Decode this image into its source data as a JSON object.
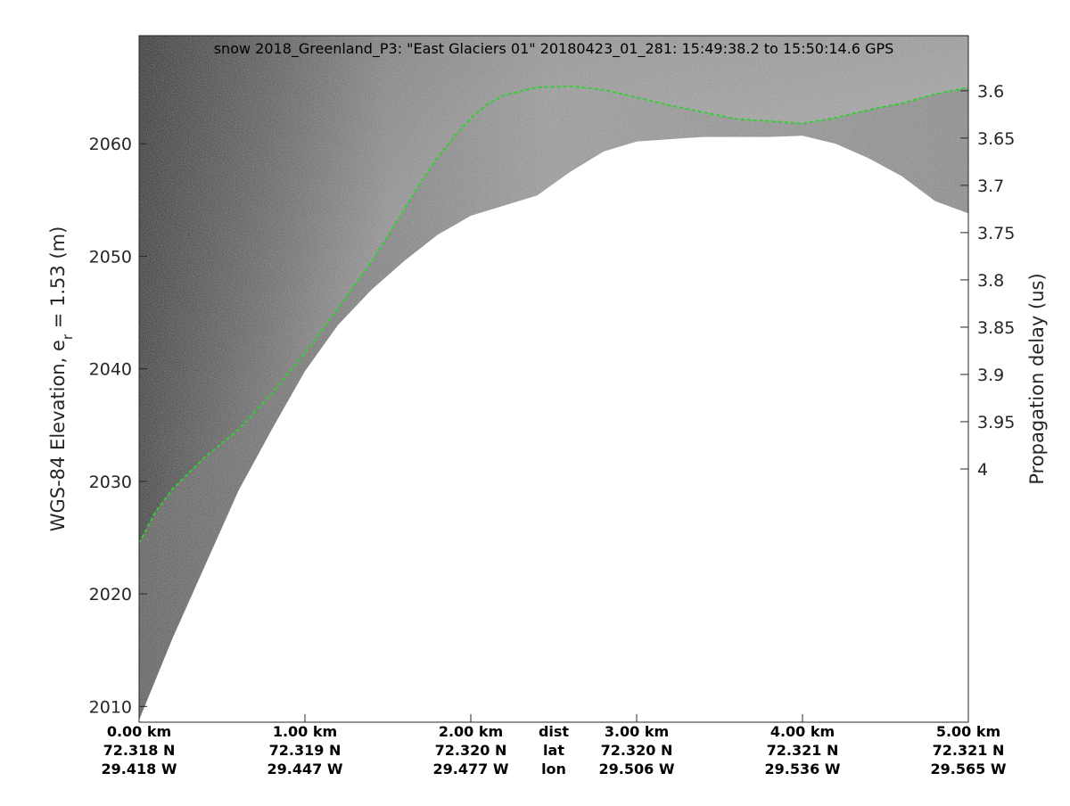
{
  "chart_data": {
    "type": "radar-echogram",
    "title": "snow 2018_Greenland_P3: \"East Glaciers 01\"  20180423_01_281: 15:49:38.2 to 15:50:14.6 GPS",
    "ylabel_left_prefix": "WGS-84 Elevation, e",
    "ylabel_left_subscript": "r",
    "ylabel_left_suffix": " = 1.53 (m)",
    "ylabel_right": "Propagation delay (us)",
    "ylim_left": [
      2008.6,
      2069.6
    ],
    "ylim_right_note": "right axis decreases downward is not applicable; delay increases downward",
    "left_ticks": [
      "2010",
      "2020",
      "2030",
      "2040",
      "2050",
      "2060"
    ],
    "left_tick_values": [
      2010,
      2020,
      2030,
      2040,
      2050,
      2060
    ],
    "right_ticks": [
      "3.6",
      "3.65",
      "3.7",
      "3.75",
      "3.8",
      "3.85",
      "3.9",
      "3.95",
      "4"
    ],
    "right_tick_values": [
      3.6,
      3.65,
      3.7,
      3.75,
      3.8,
      3.85,
      3.9,
      3.95,
      4.0
    ],
    "right_axis_elev_at": [
      [
        3.6,
        2064.7
      ],
      [
        4.0,
        2031.1
      ]
    ],
    "xlim_km": [
      0,
      5
    ],
    "bottom_rows": [
      {
        "row_label": "dist",
        "values": [
          "0.00 km",
          "1.00 km",
          "2.00 km",
          "3.00 km",
          "4.00 km",
          "5.00 km"
        ]
      },
      {
        "row_label": "lat",
        "values": [
          "72.318 N",
          "72.319 N",
          "72.320 N",
          "72.320 N",
          "72.321 N",
          "72.321 N"
        ]
      },
      {
        "row_label": "lon",
        "values": [
          "29.418 W",
          "29.447 W",
          "29.477 W",
          "29.506 W",
          "29.536 W",
          "29.565 W"
        ]
      }
    ],
    "bottom_tick_km": [
      0,
      1,
      2,
      3,
      4,
      5
    ],
    "surface_series": {
      "name": "",
      "color": "#2fd12f",
      "x_km": [
        0,
        0.1,
        0.2,
        0.4,
        0.6,
        0.8,
        1.0,
        1.2,
        1.4,
        1.5,
        1.6,
        1.7,
        1.8,
        1.9,
        2.0,
        2.1,
        2.2,
        2.4,
        2.6,
        2.8,
        3.0,
        3.2,
        3.4,
        3.6,
        3.8,
        4.0,
        4.2,
        4.4,
        4.6,
        4.8,
        5.0
      ],
      "elev_m": [
        2024.5,
        2027.3,
        2029.3,
        2032.2,
        2034.6,
        2037.8,
        2041.4,
        2045.4,
        2049.5,
        2051.8,
        2054.2,
        2056.6,
        2058.8,
        2060.6,
        2062.3,
        2063.5,
        2064.3,
        2065.0,
        2065.1,
        2064.8,
        2064.1,
        2063.4,
        2062.8,
        2062.2,
        2062.0,
        2061.8,
        2062.3,
        2063.0,
        2063.6,
        2064.4,
        2065.0
      ]
    },
    "data_extent_series": {
      "name": "",
      "x_km": [
        0,
        0.2,
        0.4,
        0.6,
        0.8,
        1.0,
        1.2,
        1.4,
        1.6,
        1.8,
        2.0,
        2.2,
        2.4,
        2.6,
        2.8,
        3.0,
        3.2,
        3.4,
        3.6,
        3.8,
        4.0,
        4.2,
        4.4,
        4.6,
        4.8,
        5.0
      ],
      "elev_m": [
        2008.8,
        2016.0,
        2022.6,
        2029.2,
        2034.6,
        2039.8,
        2043.9,
        2047.0,
        2049.6,
        2051.9,
        2053.6,
        2054.5,
        2055.4,
        2057.5,
        2059.3,
        2060.2,
        2060.4,
        2060.6,
        2060.6,
        2060.6,
        2060.7,
        2060.0,
        2058.7,
        2057.1,
        2054.9,
        2053.8
      ]
    },
    "grid": false,
    "background_image": "grayscale radar echogram with speckle noise"
  }
}
